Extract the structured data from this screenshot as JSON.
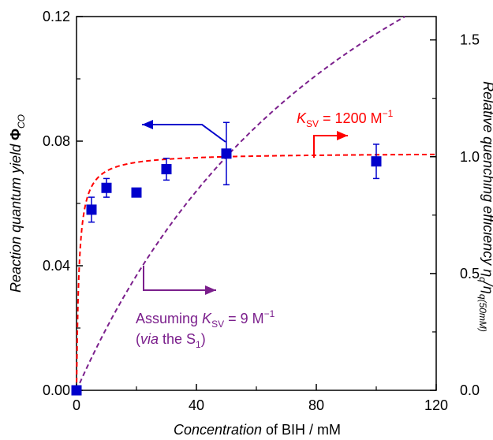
{
  "chart_data": {
    "type": "scatter",
    "x_axis": {
      "range": [
        0,
        120
      ],
      "ticks": [
        0,
        40,
        80,
        120
      ],
      "tick_labels": [
        "0",
        "40",
        "80",
        "120"
      ],
      "label_italic_part": "Concentration",
      "label_rest": " of BIH / mM"
    },
    "y_axis_left": {
      "range": [
        0,
        0.12
      ],
      "ticks": [
        0,
        0.04,
        0.08,
        0.12
      ],
      "tick_labels": [
        "0.00",
        "0.04",
        "0.08",
        "0.12"
      ],
      "label_main": "Reaction quantum yield ",
      "label_phi": "Φ",
      "label_sub": "CO"
    },
    "y_axis_right": {
      "range": [
        0,
        1.6
      ],
      "ticks": [
        0,
        0.5,
        1.0,
        1.5
      ],
      "tick_labels": [
        "0.0",
        "0.5",
        "1.0",
        "1.5"
      ],
      "label_main": "Relative quenching efficiency η",
      "label_sub1": "q",
      "label_mid": "/η",
      "label_sub2": "q(50mM)"
    },
    "series": [
      {
        "axis": "left",
        "marker": "square",
        "color": "#0000cc",
        "x": [
          0,
          5,
          10,
          20,
          30,
          50,
          100
        ],
        "y": [
          0.0,
          0.058,
          0.065,
          0.0635,
          0.071,
          0.076,
          0.0735
        ],
        "err": [
          0,
          0.004,
          0.003,
          0,
          0.0035,
          0.01,
          0.0055
        ]
      },
      {
        "axis": "right",
        "style": "dashed",
        "color": "#ff0000",
        "model": "stern-volmer",
        "ksv_per_M": 1200
      },
      {
        "axis": "right",
        "style": "dashed",
        "color": "#7b1f8c",
        "model": "stern-volmer",
        "ksv_per_M": 9
      }
    ],
    "annotations": {
      "red_k": "K",
      "red_sub": "SV",
      "red_value": " = 1200 M",
      "red_sup": "−1",
      "purple_prefix": "Assuming ",
      "purple_k": "K",
      "purple_sub": "SV",
      "purple_value": " = 9 M",
      "purple_sup": "−1",
      "purple_line2_open": "(",
      "purple_line2_via": "via",
      "purple_line2_rest": " the S",
      "purple_line2_sub": "1",
      "purple_line2_close": ")"
    },
    "grid": false,
    "legend": "none",
    "colors": {
      "blue": "#0000cc",
      "red": "#ff0000",
      "purple": "#7b1f8c"
    }
  }
}
